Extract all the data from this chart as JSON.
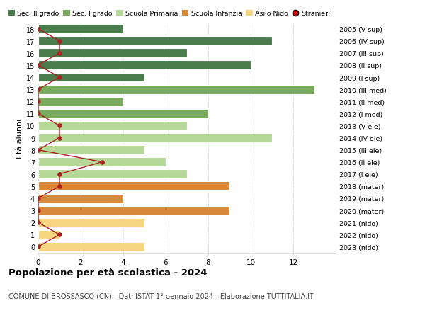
{
  "ages": [
    18,
    17,
    16,
    15,
    14,
    13,
    12,
    11,
    10,
    9,
    8,
    7,
    6,
    5,
    4,
    3,
    2,
    1,
    0
  ],
  "right_labels": [
    "2005 (V sup)",
    "2006 (IV sup)",
    "2007 (III sup)",
    "2008 (II sup)",
    "2009 (I sup)",
    "2010 (III med)",
    "2011 (II med)",
    "2012 (I med)",
    "2013 (V ele)",
    "2014 (IV ele)",
    "2015 (III ele)",
    "2016 (II ele)",
    "2017 (I ele)",
    "2018 (mater)",
    "2019 (mater)",
    "2020 (mater)",
    "2021 (nido)",
    "2022 (nido)",
    "2023 (nido)"
  ],
  "bar_values": [
    4,
    11,
    7,
    10,
    5,
    13,
    4,
    8,
    7,
    11,
    5,
    6,
    7,
    9,
    4,
    9,
    5,
    1,
    5
  ],
  "bar_colors": [
    "#4a7c4e",
    "#4a7c4e",
    "#4a7c4e",
    "#4a7c4e",
    "#4a7c4e",
    "#7aaa5e",
    "#7aaa5e",
    "#7aaa5e",
    "#b5d898",
    "#b5d898",
    "#b5d898",
    "#b5d898",
    "#b5d898",
    "#d9893a",
    "#d9893a",
    "#d9893a",
    "#f5d580",
    "#f5d580",
    "#f5d580"
  ],
  "stranieri_values": [
    0,
    1,
    1,
    0,
    1,
    0,
    0,
    0,
    1,
    1,
    0,
    3,
    1,
    1,
    0,
    0,
    0,
    1,
    0
  ],
  "legend_labels": [
    "Sec. II grado",
    "Sec. I grado",
    "Scuola Primaria",
    "Scuola Infanzia",
    "Asilo Nido",
    "Stranieri"
  ],
  "legend_colors": [
    "#4a7c4e",
    "#7aaa5e",
    "#b5d898",
    "#d9893a",
    "#f5d580",
    "#cc0000"
  ],
  "ylabel_left": "Età alunni",
  "title": "Popolazione per età scolastica - 2024",
  "subtitle": "COMUNE DI BROSSASCO (CN) - Dati ISTAT 1° gennaio 2024 - Elaborazione TUTTITALIA.IT",
  "xlim": [
    0,
    14
  ],
  "stranieri_line_color": "#aa2222",
  "bg_color": "#ffffff",
  "bar_height": 0.75,
  "grid_color": "#dddddd"
}
